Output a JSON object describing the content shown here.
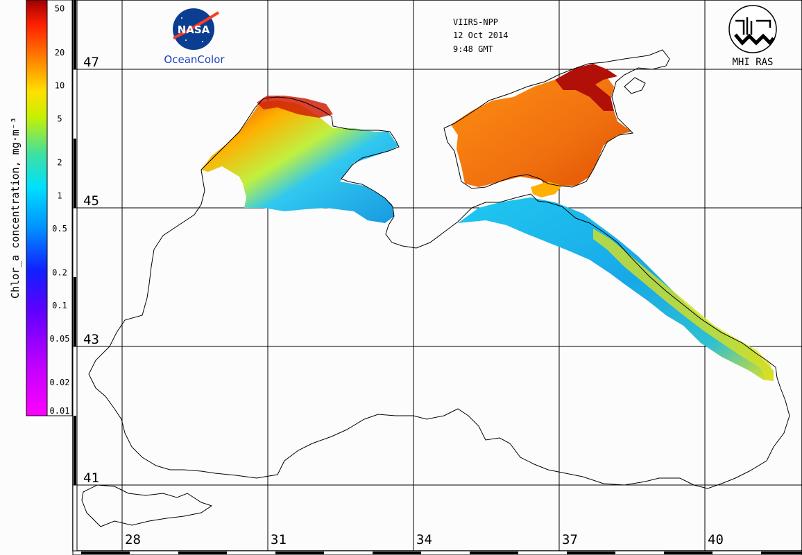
{
  "header": {
    "sensor": "VIIRS-NPP",
    "date": "12 Oct 2014",
    "time": "9:48 GMT",
    "left_logo": {
      "text": "NASA",
      "caption": "OceanColor"
    },
    "right_logo": {
      "caption": "MHI RAS"
    }
  },
  "colorbar": {
    "label": "Chlor_a concentration, mg·m⁻³",
    "ticks": [
      "50",
      "20",
      "10",
      "5",
      "2",
      "1",
      "0.5",
      "0.2",
      "0.1",
      "0.05",
      "0.02",
      "0.01"
    ],
    "tick_values": [
      50,
      20,
      10,
      5,
      2,
      1,
      0.5,
      0.2,
      0.1,
      0.05,
      0.02,
      0.01
    ],
    "range": [
      0.01,
      60
    ],
    "scale": "log",
    "colors": [
      "#ff00ff",
      "#9900ff",
      "#1010ff",
      "#00a0ff",
      "#00e0ff",
      "#40e0a0",
      "#c0f000",
      "#ffe000",
      "#ff8000",
      "#ff2000",
      "#a00000"
    ]
  },
  "grid": {
    "lat_labels": [
      "47",
      "45",
      "43",
      "41"
    ],
    "lon_labels": [
      "28",
      "31",
      "34",
      "37",
      "40"
    ]
  }
}
